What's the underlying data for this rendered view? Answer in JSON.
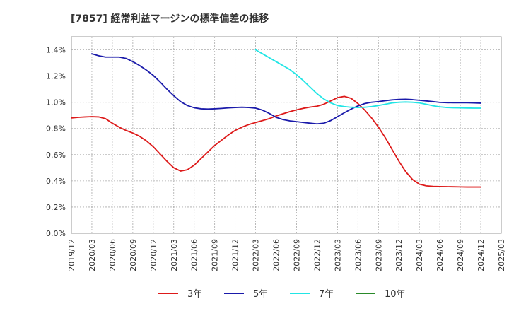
{
  "chart_data": {
    "type": "line",
    "title": "[7857]  経常利益マージンの標準偏差の推移",
    "xlabel": "",
    "ylabel": "",
    "ylim": [
      0,
      1.5
    ],
    "y_ticks": [
      "0.0%",
      "0.2%",
      "0.4%",
      "0.6%",
      "0.8%",
      "1.0%",
      "1.2%",
      "1.4%"
    ],
    "y_tick_values": [
      0,
      0.2,
      0.4,
      0.6,
      0.8,
      1.0,
      1.2,
      1.4
    ],
    "x_ticks": [
      "2019/12",
      "2020/03",
      "2020/06",
      "2020/09",
      "2020/12",
      "2021/03",
      "2021/06",
      "2021/09",
      "2021/12",
      "2022/03",
      "2022/06",
      "2022/09",
      "2022/12",
      "2023/03",
      "2023/06",
      "2023/09",
      "2023/12",
      "2024/03",
      "2024/06",
      "2024/09",
      "2024/12",
      "2025/03"
    ],
    "grid": true,
    "legend_position": "bottom",
    "series": [
      {
        "name": "3年",
        "color": "#dd1a1a",
        "points": [
          [
            "2019/12",
            0.88
          ],
          [
            "2020/01",
            0.885
          ],
          [
            "2020/02",
            0.888
          ],
          [
            "2020/03",
            0.89
          ],
          [
            "2020/04",
            0.888
          ],
          [
            "2020/05",
            0.875
          ],
          [
            "2020/06",
            0.84
          ],
          [
            "2020/07",
            0.81
          ],
          [
            "2020/08",
            0.785
          ],
          [
            "2020/09",
            0.765
          ],
          [
            "2020/10",
            0.74
          ],
          [
            "2020/11",
            0.705
          ],
          [
            "2020/12",
            0.66
          ],
          [
            "2021/01",
            0.605
          ],
          [
            "2021/02",
            0.55
          ],
          [
            "2021/03",
            0.5
          ],
          [
            "2021/04",
            0.475
          ],
          [
            "2021/05",
            0.485
          ],
          [
            "2021/06",
            0.52
          ],
          [
            "2021/07",
            0.57
          ],
          [
            "2021/08",
            0.62
          ],
          [
            "2021/09",
            0.67
          ],
          [
            "2021/10",
            0.71
          ],
          [
            "2021/11",
            0.75
          ],
          [
            "2021/12",
            0.785
          ],
          [
            "2022/01",
            0.81
          ],
          [
            "2022/02",
            0.83
          ],
          [
            "2022/03",
            0.845
          ],
          [
            "2022/04",
            0.86
          ],
          [
            "2022/05",
            0.875
          ],
          [
            "2022/06",
            0.895
          ],
          [
            "2022/07",
            0.912
          ],
          [
            "2022/08",
            0.928
          ],
          [
            "2022/09",
            0.942
          ],
          [
            "2022/10",
            0.954
          ],
          [
            "2022/11",
            0.963
          ],
          [
            "2022/12",
            0.97
          ],
          [
            "2023/01",
            0.985
          ],
          [
            "2023/02",
            1.01
          ],
          [
            "2023/03",
            1.035
          ],
          [
            "2023/04",
            1.045
          ],
          [
            "2023/05",
            1.03
          ],
          [
            "2023/06",
            0.99
          ],
          [
            "2023/07",
            0.94
          ],
          [
            "2023/08",
            0.88
          ],
          [
            "2023/09",
            0.81
          ],
          [
            "2023/10",
            0.73
          ],
          [
            "2023/11",
            0.64
          ],
          [
            "2023/12",
            0.55
          ],
          [
            "2024/01",
            0.47
          ],
          [
            "2024/02",
            0.41
          ],
          [
            "2024/03",
            0.375
          ],
          [
            "2024/04",
            0.362
          ],
          [
            "2024/05",
            0.358
          ],
          [
            "2024/06",
            0.357
          ],
          [
            "2024/07",
            0.356
          ],
          [
            "2024/08",
            0.355
          ],
          [
            "2024/09",
            0.354
          ],
          [
            "2024/10",
            0.353
          ],
          [
            "2024/11",
            0.353
          ],
          [
            "2024/12",
            0.353
          ]
        ]
      },
      {
        "name": "5年",
        "color": "#1a1aaa",
        "points": [
          [
            "2020/03",
            1.37
          ],
          [
            "2020/04",
            1.355
          ],
          [
            "2020/05",
            1.345
          ],
          [
            "2020/06",
            1.345
          ],
          [
            "2020/07",
            1.345
          ],
          [
            "2020/08",
            1.335
          ],
          [
            "2020/09",
            1.31
          ],
          [
            "2020/10",
            1.28
          ],
          [
            "2020/11",
            1.245
          ],
          [
            "2020/12",
            1.205
          ],
          [
            "2021/01",
            1.155
          ],
          [
            "2021/02",
            1.1
          ],
          [
            "2021/03",
            1.05
          ],
          [
            "2021/04",
            1.005
          ],
          [
            "2021/05",
            0.975
          ],
          [
            "2021/06",
            0.958
          ],
          [
            "2021/07",
            0.95
          ],
          [
            "2021/08",
            0.948
          ],
          [
            "2021/09",
            0.95
          ],
          [
            "2021/10",
            0.953
          ],
          [
            "2021/11",
            0.957
          ],
          [
            "2021/12",
            0.96
          ],
          [
            "2022/01",
            0.962
          ],
          [
            "2022/02",
            0.96
          ],
          [
            "2022/03",
            0.955
          ],
          [
            "2022/04",
            0.94
          ],
          [
            "2022/05",
            0.915
          ],
          [
            "2022/06",
            0.885
          ],
          [
            "2022/07",
            0.868
          ],
          [
            "2022/08",
            0.858
          ],
          [
            "2022/09",
            0.852
          ],
          [
            "2022/10",
            0.846
          ],
          [
            "2022/11",
            0.84
          ],
          [
            "2022/12",
            0.835
          ],
          [
            "2023/01",
            0.84
          ],
          [
            "2023/02",
            0.86
          ],
          [
            "2023/03",
            0.89
          ],
          [
            "2023/04",
            0.92
          ],
          [
            "2023/05",
            0.948
          ],
          [
            "2023/06",
            0.972
          ],
          [
            "2023/07",
            0.99
          ],
          [
            "2023/08",
            1.0
          ],
          [
            "2023/09",
            1.005
          ],
          [
            "2023/10",
            1.012
          ],
          [
            "2023/11",
            1.018
          ],
          [
            "2023/12",
            1.022
          ],
          [
            "2024/01",
            1.023
          ],
          [
            "2024/02",
            1.02
          ],
          [
            "2024/03",
            1.015
          ],
          [
            "2024/04",
            1.01
          ],
          [
            "2024/05",
            1.005
          ],
          [
            "2024/06",
            0.999
          ],
          [
            "2024/07",
            0.997
          ],
          [
            "2024/08",
            0.996
          ],
          [
            "2024/09",
            0.996
          ],
          [
            "2024/10",
            0.996
          ],
          [
            "2024/11",
            0.995
          ],
          [
            "2024/12",
            0.993
          ]
        ]
      },
      {
        "name": "7年",
        "color": "#22e5e5",
        "points": [
          [
            "2022/03",
            1.4
          ],
          [
            "2022/04",
            1.37
          ],
          [
            "2022/05",
            1.34
          ],
          [
            "2022/06",
            1.31
          ],
          [
            "2022/07",
            1.28
          ],
          [
            "2022/08",
            1.25
          ],
          [
            "2022/09",
            1.21
          ],
          [
            "2022/10",
            1.165
          ],
          [
            "2022/11",
            1.115
          ],
          [
            "2022/12",
            1.065
          ],
          [
            "2023/01",
            1.025
          ],
          [
            "2023/02",
            0.995
          ],
          [
            "2023/03",
            0.975
          ],
          [
            "2023/04",
            0.967
          ],
          [
            "2023/05",
            0.962
          ],
          [
            "2023/06",
            0.96
          ],
          [
            "2023/07",
            0.962
          ],
          [
            "2023/08",
            0.967
          ],
          [
            "2023/09",
            0.975
          ],
          [
            "2023/10",
            0.985
          ],
          [
            "2023/11",
            0.995
          ],
          [
            "2023/12",
            1.0
          ],
          [
            "2024/01",
            1.002
          ],
          [
            "2024/02",
            1.0
          ],
          [
            "2024/03",
            0.995
          ],
          [
            "2024/04",
            0.985
          ],
          [
            "2024/05",
            0.973
          ],
          [
            "2024/06",
            0.965
          ],
          [
            "2024/07",
            0.96
          ],
          [
            "2024/08",
            0.958
          ],
          [
            "2024/09",
            0.957
          ],
          [
            "2024/10",
            0.956
          ],
          [
            "2024/11",
            0.955
          ],
          [
            "2024/12",
            0.955
          ]
        ]
      },
      {
        "name": "10年",
        "color": "#2a8a2a",
        "points": []
      }
    ]
  }
}
